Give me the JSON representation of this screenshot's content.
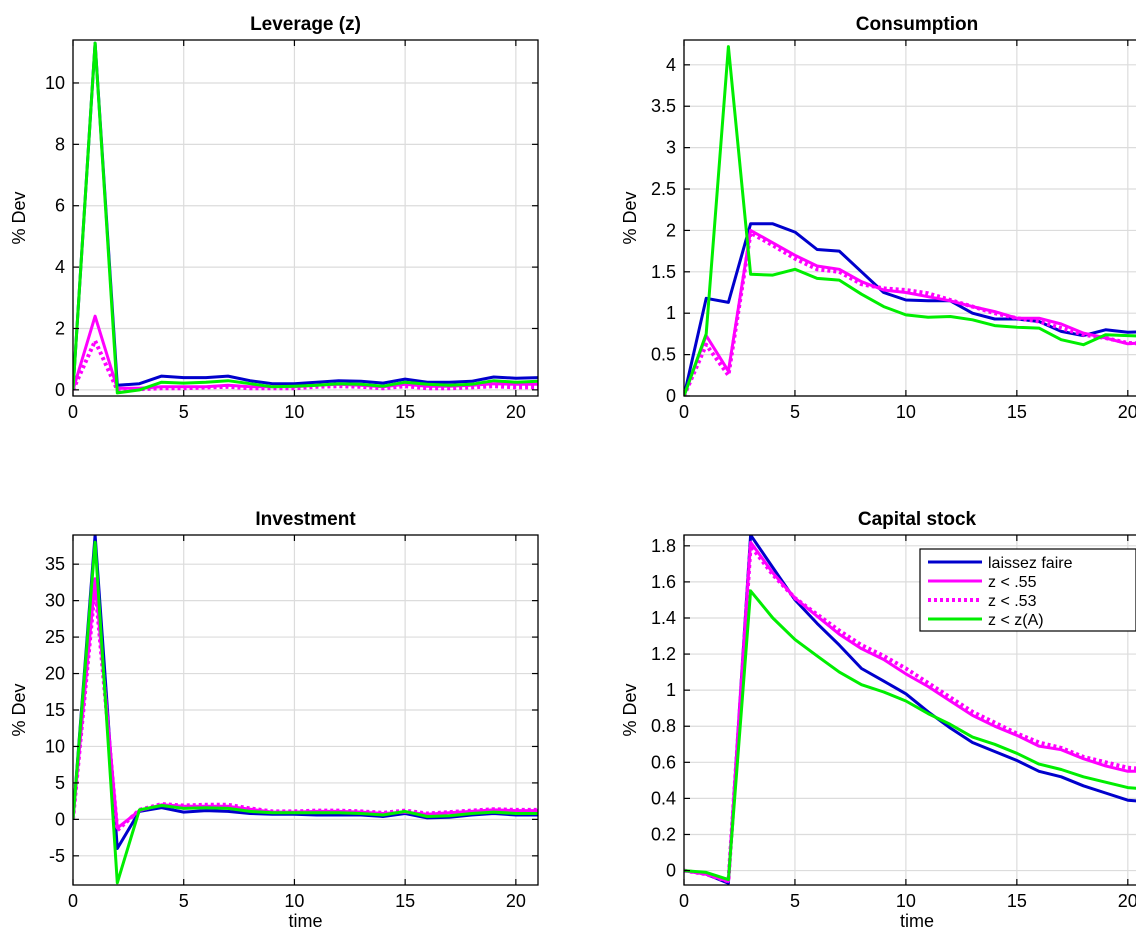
{
  "colors": {
    "laissez_faire": "#0000cc",
    "z_055": "#ff00ff",
    "z_053": "#ff00ff",
    "z_zA": "#00ee00"
  },
  "legend": {
    "items": [
      "laissez faire",
      "z < .55",
      "z < .53",
      "z < z(A)"
    ],
    "placement": "top-right of Capital stock panel"
  },
  "chart_data": [
    {
      "type": "line",
      "title": "Leverage (z)",
      "xlabel": "",
      "ylabel": "% Dev",
      "xlim": [
        0,
        21
      ],
      "ylim": [
        -0.2,
        11.4
      ],
      "xticks": [
        0,
        5,
        10,
        15,
        20
      ],
      "yticks": [
        0,
        2,
        4,
        6,
        8,
        10
      ],
      "ytick_labels": [
        "0",
        "2",
        "4",
        "6",
        "8",
        "10"
      ],
      "grid": true,
      "x": [
        0,
        1,
        2,
        3,
        4,
        5,
        6,
        7,
        8,
        9,
        10,
        11,
        12,
        13,
        14,
        15,
        16,
        17,
        18,
        19,
        20,
        21
      ],
      "series": [
        {
          "name": "laissez faire",
          "style": "solid",
          "values": [
            0,
            11.3,
            0.15,
            0.2,
            0.45,
            0.4,
            0.4,
            0.45,
            0.3,
            0.2,
            0.2,
            0.25,
            0.3,
            0.28,
            0.22,
            0.35,
            0.25,
            0.25,
            0.28,
            0.42,
            0.38,
            0.4
          ]
        },
        {
          "name": "z < .55",
          "style": "solid",
          "values": [
            0,
            2.4,
            0.05,
            0.05,
            0.1,
            0.1,
            0.1,
            0.15,
            0.1,
            0.1,
            0.1,
            0.15,
            0.18,
            0.15,
            0.1,
            0.18,
            0.12,
            0.12,
            0.15,
            0.2,
            0.18,
            0.18
          ]
        },
        {
          "name": "z < .53",
          "style": "dotted",
          "values": [
            0,
            1.6,
            0.0,
            0.02,
            0.05,
            0.05,
            0.08,
            0.1,
            0.05,
            0.05,
            0.05,
            0.1,
            0.12,
            0.1,
            0.05,
            0.12,
            0.05,
            0.05,
            0.08,
            0.12,
            0.08,
            0.08
          ]
        },
        {
          "name": "z < z(A)",
          "style": "solid",
          "values": [
            0,
            11.3,
            -0.1,
            0.0,
            0.25,
            0.22,
            0.25,
            0.3,
            0.2,
            0.1,
            0.12,
            0.15,
            0.2,
            0.18,
            0.12,
            0.25,
            0.18,
            0.15,
            0.18,
            0.3,
            0.25,
            0.28
          ]
        }
      ]
    },
    {
      "type": "line",
      "title": "Consumption",
      "xlabel": "",
      "ylabel": "% Dev",
      "xlim": [
        0,
        21
      ],
      "ylim": [
        0,
        4.3
      ],
      "xticks": [
        0,
        5,
        10,
        15,
        20
      ],
      "yticks": [
        0,
        0.5,
        1,
        1.5,
        2,
        2.5,
        3,
        3.5,
        4
      ],
      "ytick_labels": [
        "0",
        "0.5",
        "1",
        "1.5",
        "2",
        "2.5",
        "3",
        "3.5",
        "4"
      ],
      "grid": true,
      "x": [
        0,
        1,
        2,
        3,
        4,
        5,
        6,
        7,
        8,
        9,
        10,
        11,
        12,
        13,
        14,
        15,
        16,
        17,
        18,
        19,
        20,
        21
      ],
      "series": [
        {
          "name": "laissez faire",
          "style": "solid",
          "values": [
            0,
            1.18,
            1.13,
            2.08,
            2.08,
            1.98,
            1.77,
            1.75,
            1.5,
            1.25,
            1.16,
            1.15,
            1.15,
            1.0,
            0.93,
            0.93,
            0.9,
            0.78,
            0.73,
            0.8,
            0.77,
            0.78
          ]
        },
        {
          "name": "z < .55",
          "style": "solid",
          "values": [
            0,
            0.73,
            0.3,
            2.0,
            1.85,
            1.7,
            1.57,
            1.53,
            1.38,
            1.28,
            1.25,
            1.2,
            1.15,
            1.08,
            1.02,
            0.94,
            0.94,
            0.87,
            0.76,
            0.7,
            0.63,
            0.65
          ]
        },
        {
          "name": "z < .53",
          "style": "dotted",
          "values": [
            0,
            0.62,
            0.25,
            1.97,
            1.82,
            1.66,
            1.53,
            1.5,
            1.35,
            1.3,
            1.28,
            1.24,
            1.16,
            1.08,
            1.0,
            0.94,
            0.9,
            0.82,
            0.74,
            0.7,
            0.64,
            0.63
          ]
        },
        {
          "name": "z < z(A)",
          "style": "solid",
          "values": [
            0,
            0.75,
            4.22,
            1.47,
            1.46,
            1.53,
            1.42,
            1.4,
            1.23,
            1.08,
            0.98,
            0.95,
            0.96,
            0.92,
            0.85,
            0.83,
            0.82,
            0.68,
            0.62,
            0.74,
            0.73,
            0.72
          ]
        }
      ]
    },
    {
      "type": "line",
      "title": "Investment",
      "xlabel": "time",
      "ylabel": "% Dev",
      "xlim": [
        0,
        21
      ],
      "ylim": [
        -9,
        39
      ],
      "xticks": [
        0,
        5,
        10,
        15,
        20
      ],
      "yticks": [
        -5,
        0,
        5,
        10,
        15,
        20,
        25,
        30,
        35
      ],
      "ytick_labels": [
        "-5",
        "0",
        "5",
        "10",
        "15",
        "20",
        "25",
        "30",
        "35"
      ],
      "grid": true,
      "x": [
        0,
        1,
        2,
        3,
        4,
        5,
        6,
        7,
        8,
        9,
        10,
        11,
        12,
        13,
        14,
        15,
        16,
        17,
        18,
        19,
        20,
        21
      ],
      "series": [
        {
          "name": "laissez faire",
          "style": "solid",
          "values": [
            0,
            39,
            -4,
            1.1,
            1.6,
            1.0,
            1.2,
            1.1,
            0.8,
            0.7,
            0.7,
            0.6,
            0.6,
            0.6,
            0.4,
            0.8,
            0.2,
            0.3,
            0.6,
            0.8,
            0.6,
            0.6
          ]
        },
        {
          "name": "z < .55",
          "style": "solid",
          "values": [
            0,
            33,
            -1.2,
            1.2,
            2.0,
            1.8,
            1.8,
            1.8,
            1.4,
            1.0,
            1.0,
            1.1,
            1.1,
            1.0,
            0.8,
            1.0,
            0.7,
            0.9,
            1.1,
            1.3,
            1.2,
            1.2
          ]
        },
        {
          "name": "z < .53",
          "style": "dotted",
          "values": [
            0,
            32,
            -1.5,
            1.3,
            2.1,
            1.9,
            2.0,
            2.0,
            1.5,
            1.1,
            1.1,
            1.2,
            1.2,
            1.1,
            0.9,
            1.2,
            0.8,
            1.0,
            1.2,
            1.4,
            1.3,
            1.3
          ]
        },
        {
          "name": "z < z(A)",
          "style": "solid",
          "values": [
            0,
            38,
            -8.7,
            1.3,
            1.9,
            1.5,
            1.6,
            1.5,
            1.1,
            0.9,
            0.9,
            0.9,
            0.9,
            0.8,
            0.6,
            1.1,
            0.4,
            0.5,
            0.8,
            1.0,
            0.8,
            0.8
          ]
        }
      ]
    },
    {
      "type": "line",
      "title": "Capital stock",
      "xlabel": "time",
      "ylabel": "% Dev",
      "xlim": [
        0,
        21
      ],
      "ylim": [
        -0.08,
        1.86
      ],
      "xticks": [
        0,
        5,
        10,
        15,
        20
      ],
      "yticks": [
        0,
        0.2,
        0.4,
        0.6,
        0.8,
        1,
        1.2,
        1.4,
        1.6,
        1.8
      ],
      "ytick_labels": [
        "0",
        "0.2",
        "0.4",
        "0.6",
        "0.8",
        "1",
        "1.2",
        "1.4",
        "1.6",
        "1.8"
      ],
      "grid": true,
      "x": [
        0,
        1,
        2,
        3,
        4,
        5,
        6,
        7,
        8,
        9,
        10,
        11,
        12,
        13,
        14,
        15,
        16,
        17,
        18,
        19,
        20,
        21
      ],
      "series": [
        {
          "name": "laissez faire",
          "style": "solid",
          "values": [
            0,
            -0.02,
            -0.07,
            1.86,
            1.68,
            1.5,
            1.37,
            1.25,
            1.12,
            1.05,
            0.98,
            0.88,
            0.79,
            0.71,
            0.66,
            0.61,
            0.55,
            0.52,
            0.47,
            0.43,
            0.39,
            0.38
          ]
        },
        {
          "name": "z < .55",
          "style": "solid",
          "values": [
            0,
            -0.02,
            -0.06,
            1.82,
            1.65,
            1.51,
            1.41,
            1.31,
            1.23,
            1.17,
            1.09,
            1.02,
            0.94,
            0.86,
            0.8,
            0.75,
            0.69,
            0.67,
            0.62,
            0.58,
            0.55,
            0.55
          ]
        },
        {
          "name": "z < .53",
          "style": "dotted",
          "values": [
            0,
            -0.02,
            -0.06,
            1.8,
            1.64,
            1.51,
            1.42,
            1.33,
            1.25,
            1.19,
            1.12,
            1.04,
            0.96,
            0.88,
            0.82,
            0.76,
            0.71,
            0.68,
            0.63,
            0.6,
            0.57,
            0.56
          ]
        },
        {
          "name": "z < z(A)",
          "style": "solid",
          "values": [
            0,
            -0.01,
            -0.05,
            1.55,
            1.4,
            1.28,
            1.19,
            1.1,
            1.03,
            0.99,
            0.94,
            0.87,
            0.81,
            0.74,
            0.7,
            0.65,
            0.59,
            0.56,
            0.52,
            0.49,
            0.46,
            0.45
          ]
        }
      ]
    }
  ]
}
